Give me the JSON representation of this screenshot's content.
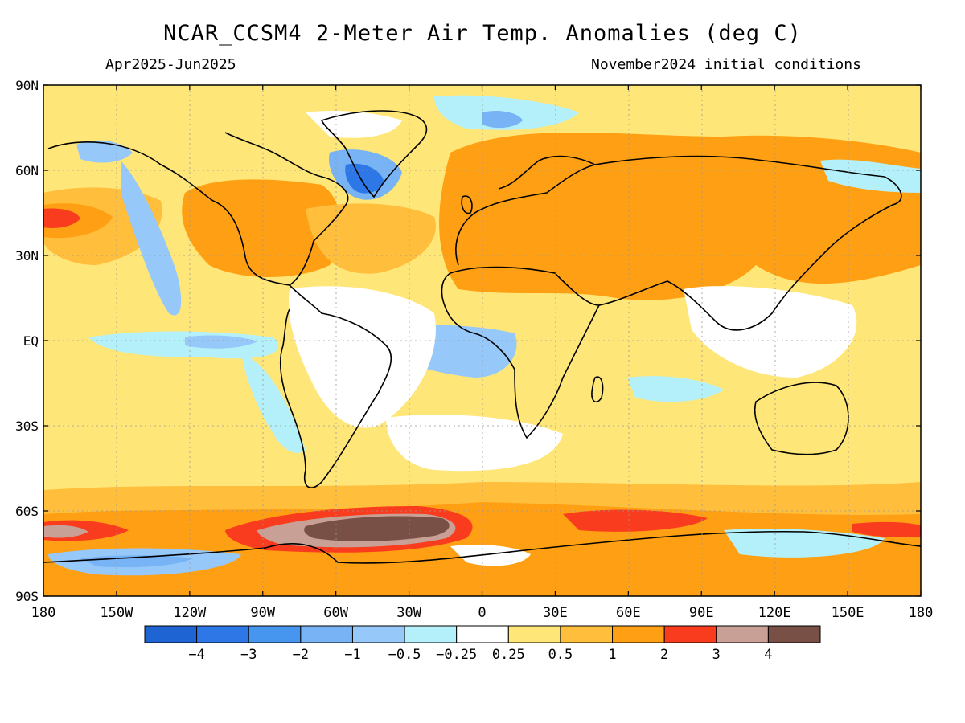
{
  "title": "NCAR_CCSM4 2-Meter Air Temp. Anomalies (deg C)",
  "period": "Apr2025-Jun2025",
  "initial_conditions": "November2024 initial conditions",
  "lat_labels": [
    "90N",
    "60N",
    "30N",
    "EQ",
    "30S",
    "60S",
    "90S"
  ],
  "lon_labels": [
    "180",
    "150W",
    "120W",
    "90W",
    "60W",
    "30W",
    "0",
    "30E",
    "60E",
    "90E",
    "120E",
    "150E",
    "180"
  ],
  "colorbar": {
    "colors": [
      "#1e64d2",
      "#2d78e6",
      "#4696f0",
      "#78b4f5",
      "#96c8fa",
      "#b4f0fa",
      "#ffffff",
      "#ffe678",
      "#ffbe3c",
      "#ffa014",
      "#fa3c1e",
      "#c8a096",
      "#785046"
    ],
    "labels": [
      "−4",
      "−3",
      "−2",
      "−1",
      "−0.5",
      "−0.25",
      "0.25",
      "0.5",
      "1",
      "2",
      "3",
      "4"
    ]
  }
}
